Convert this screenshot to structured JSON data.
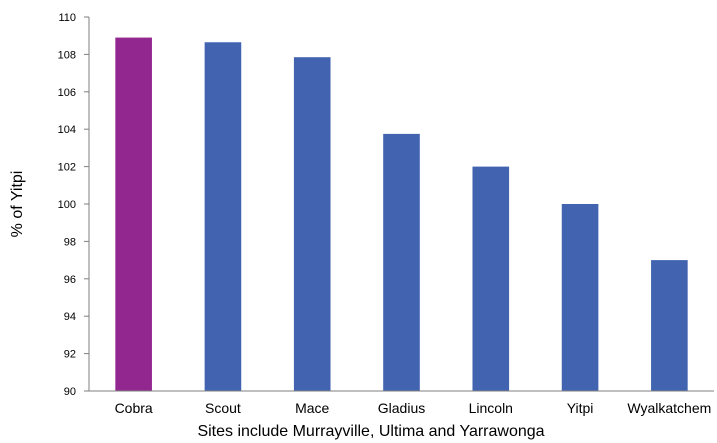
{
  "chart_data": {
    "type": "bar",
    "title": "",
    "xlabel": "Sites include Murrayville, Ultima and Yarrawonga",
    "ylabel": "% of Yitpi",
    "categories": [
      "Cobra",
      "Scout",
      "Mace",
      "Gladius",
      "Lincoln",
      "Yitpi",
      "Wyalkatchem"
    ],
    "values": [
      108.9,
      108.65,
      107.85,
      103.75,
      102.0,
      100.0,
      97.0
    ],
    "bar_colors": [
      "#92278f",
      "#4264b0",
      "#4264b0",
      "#4264b0",
      "#4264b0",
      "#4264b0",
      "#4264b0"
    ],
    "ylim": [
      90,
      110
    ],
    "yticks": [
      90,
      92,
      94,
      96,
      98,
      100,
      102,
      104,
      106,
      108,
      110
    ],
    "grid": false,
    "legend": "none"
  }
}
